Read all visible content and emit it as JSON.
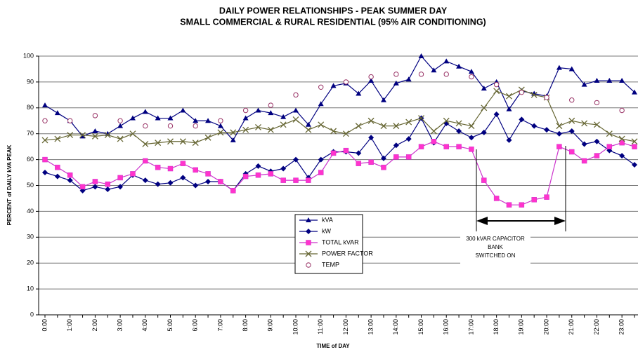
{
  "chart_data": {
    "type": "line",
    "title": [
      "DAILY POWER RELATIONSHIPS - PEAK SUMMER DAY",
      "SMALL COMMERCIAL & RURAL RESIDENTIAL (95% AIR CONDITIONING)"
    ],
    "y_label": "PERCENT of DAILY kVA PEAK",
    "x_label": "TIME of DAY",
    "categories": [
      "0:00",
      null,
      "1:00",
      null,
      "2:00",
      null,
      "3:00",
      null,
      "4:00",
      null,
      "5:00",
      null,
      "6:00",
      null,
      "7:00",
      null,
      "8:00",
      null,
      "9:00",
      null,
      "10:00",
      null,
      "11:00",
      null,
      "12:00",
      null,
      "13:00",
      null,
      "14:00",
      null,
      "15:00",
      null,
      "16:00",
      null,
      "17:00",
      null,
      "18:00",
      null,
      "19:00",
      null,
      "20:00",
      null,
      "21:00",
      null,
      "22:00",
      null,
      "23:00",
      null
    ],
    "ylim": [
      0,
      100
    ],
    "yticks": [
      0,
      10,
      20,
      30,
      40,
      50,
      60,
      70,
      80,
      90,
      100
    ],
    "grid": true,
    "series": [
      {
        "name": "kVA",
        "color": "#000080",
        "marker": "triangle",
        "line": true,
        "values": [
          81,
          78,
          75,
          69,
          71,
          70,
          73,
          76,
          78.5,
          76,
          76,
          79,
          75,
          75,
          73,
          67.5,
          76,
          79,
          78,
          76.5,
          79,
          73.5,
          81.5,
          88.5,
          89.5,
          85.5,
          90.5,
          83,
          89.5,
          91,
          100,
          94.5,
          98,
          96,
          94,
          87.5,
          90,
          79.5,
          86.5,
          85.5,
          84.5,
          95.5,
          95,
          89,
          90.5,
          90.5,
          90.5,
          86
        ]
      },
      {
        "name": "kW",
        "color": "#000080",
        "marker": "diamond",
        "line": true,
        "values": [
          55,
          53.5,
          52,
          48,
          49.5,
          48.5,
          49.5,
          54,
          52,
          50.5,
          51,
          53,
          50,
          51.5,
          51.5,
          48,
          54.5,
          57.5,
          55.5,
          56.5,
          60,
          53,
          60,
          63,
          63,
          62.5,
          68.5,
          60.5,
          65.5,
          68,
          76,
          66.5,
          74,
          71,
          68.5,
          70.5,
          77.5,
          67.5,
          75.5,
          73,
          71.5,
          70,
          71,
          66,
          67,
          63.5,
          61.5,
          58
        ]
      },
      {
        "name": "TOTAL kVAR",
        "color": "#cc33cc",
        "marker": "square",
        "line": true,
        "values": [
          60,
          57,
          54,
          49.5,
          51.5,
          50.5,
          53,
          54.5,
          59.5,
          57,
          56.5,
          58.5,
          56,
          54.5,
          51.5,
          48,
          53.5,
          54,
          54.5,
          52,
          52,
          52,
          55,
          62.5,
          63.5,
          58.5,
          59,
          57,
          61,
          61,
          65,
          67,
          65,
          65,
          64,
          52,
          45,
          42.5,
          42.5,
          44.5,
          45.5,
          65,
          63,
          59.5,
          61.5,
          65,
          66.5,
          65
        ]
      },
      {
        "name": "POWER FACTOR",
        "color": "#666633",
        "marker": "x",
        "line": true,
        "values": [
          67.5,
          68,
          69.5,
          69.5,
          69,
          69.5,
          68,
          70,
          66,
          66.5,
          67,
          67,
          66.5,
          68.5,
          70.5,
          70.5,
          71.5,
          72.5,
          71.5,
          73.5,
          75.5,
          71.5,
          73.5,
          71,
          70,
          73,
          75,
          73,
          73,
          74.5,
          76,
          71,
          75,
          74,
          73,
          80,
          86.5,
          84.5,
          87,
          85,
          84,
          73,
          75,
          74,
          73.5,
          70,
          68,
          67
        ]
      },
      {
        "name": "TEMP",
        "color": "#993366",
        "marker": "circle",
        "line": false,
        "values": [
          75,
          null,
          75,
          null,
          77,
          null,
          75,
          null,
          73,
          null,
          73,
          null,
          73,
          null,
          75,
          null,
          79,
          null,
          81,
          null,
          85,
          null,
          88,
          null,
          90,
          null,
          92,
          null,
          93,
          null,
          93,
          null,
          93,
          null,
          92,
          null,
          89,
          null,
          86,
          null,
          84,
          null,
          83,
          null,
          82,
          null,
          79,
          null
        ]
      }
    ],
    "annotation": [
      "300 kVAR CAPACITOR",
      "BANK",
      "SWITCHED ON"
    ]
  }
}
